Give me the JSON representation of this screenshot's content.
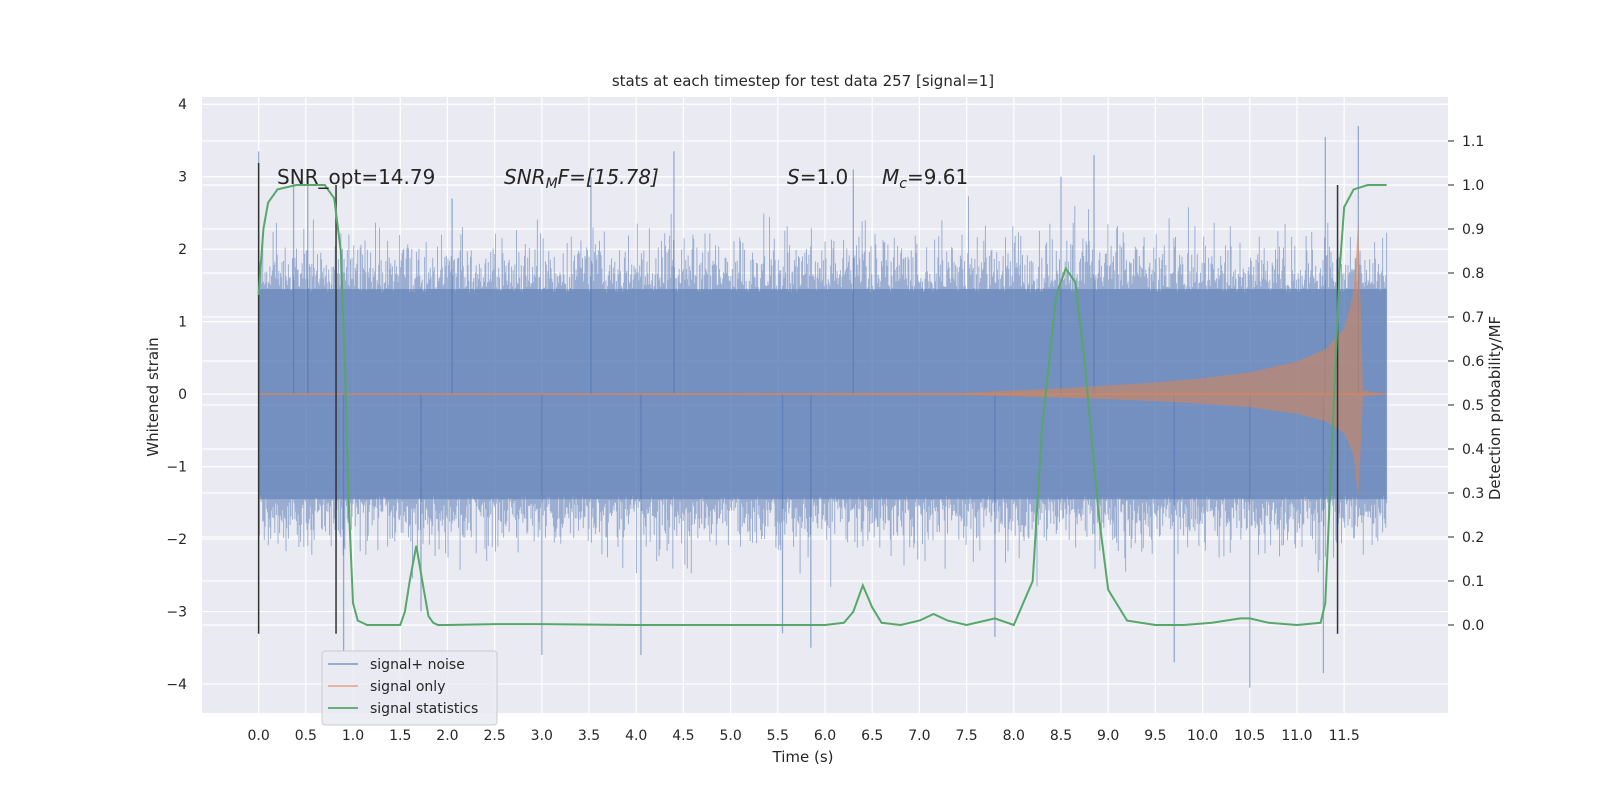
{
  "chart_data": {
    "type": "line",
    "title": "stats at each timestep for test data 257 [signal=1]",
    "xlabel": "Time (s)",
    "ylabel": "Whitened strain",
    "ylabel_right": "Detection probability/MF",
    "xlim": [
      -0.6,
      12.6
    ],
    "ylim_left": [
      -4.4,
      4.1
    ],
    "ylim_right": [
      -0.2,
      1.2
    ],
    "x_ticks": [
      "0.0",
      "0.5",
      "1.0",
      "1.5",
      "2.0",
      "2.5",
      "3.0",
      "3.5",
      "4.0",
      "4.5",
      "5.0",
      "5.5",
      "6.0",
      "6.5",
      "7.0",
      "7.5",
      "8.0",
      "8.5",
      "9.0",
      "9.5",
      "10.0",
      "10.5",
      "11.0",
      "11.5"
    ],
    "y_ticks_left": [
      "4",
      "3",
      "2",
      "1",
      "0",
      "−1",
      "−2",
      "−3",
      "−4"
    ],
    "y_ticks_right": [
      "1.1",
      "1.0",
      "0.9",
      "0.8",
      "0.7",
      "0.6",
      "0.5",
      "0.4",
      "0.3",
      "0.2",
      "0.1",
      "0.0"
    ],
    "grid": true,
    "legend_position": "lower-left",
    "annotations": {
      "snr_opt": "SNR_opt=14.79",
      "snr_mf_sym": "SNR",
      "snr_mf_sub": "M",
      "snr_mf_rest": "F=[15.78]",
      "s_sym": "S",
      "s_rest": "=1.0",
      "mc_sym": "M",
      "mc_sub": "c",
      "mc_rest": "=9.61"
    },
    "vertical_markers_x": [
      0.0,
      0.82,
      11.43
    ],
    "series": [
      {
        "name": "signal+ noise",
        "color": "#4c72b0",
        "axis": "left",
        "x_range": [
          0.0,
          11.95
        ],
        "envelope": {
          "x": [
            0.0,
            11.95
          ],
          "y_min": [
            -2.0,
            -2.0
          ],
          "y_max": [
            2.0,
            2.0
          ]
        },
        "spikes": [
          {
            "x": 0.0,
            "y": 3.35
          },
          {
            "x": 0.37,
            "y": 2.9
          },
          {
            "x": 0.52,
            "y": 3.0
          },
          {
            "x": 0.9,
            "y": -3.55
          },
          {
            "x": 1.72,
            "y": -3.0
          },
          {
            "x": 2.05,
            "y": 2.7
          },
          {
            "x": 3.0,
            "y": -3.6
          },
          {
            "x": 3.52,
            "y": 3.0
          },
          {
            "x": 4.05,
            "y": -3.6
          },
          {
            "x": 4.4,
            "y": 3.35
          },
          {
            "x": 5.55,
            "y": -3.3
          },
          {
            "x": 5.85,
            "y": -3.5
          },
          {
            "x": 6.3,
            "y": 3.1
          },
          {
            "x": 7.8,
            "y": -3.35
          },
          {
            "x": 8.5,
            "y": 3.0
          },
          {
            "x": 8.85,
            "y": 3.3
          },
          {
            "x": 9.7,
            "y": -3.7
          },
          {
            "x": 10.5,
            "y": -4.05
          },
          {
            "x": 11.3,
            "y": 3.55
          },
          {
            "x": 11.28,
            "y": -3.85
          },
          {
            "x": 11.65,
            "y": 3.7
          }
        ]
      },
      {
        "name": "signal only",
        "color": "#dd8452",
        "axis": "left",
        "x": [
          0.0,
          7.5,
          8.0,
          8.5,
          9.0,
          9.5,
          10.0,
          10.5,
          11.0,
          11.3,
          11.5,
          11.6,
          11.65,
          11.7,
          11.95
        ],
        "amplitude": [
          0.0,
          0.02,
          0.05,
          0.08,
          0.12,
          0.16,
          0.22,
          0.3,
          0.45,
          0.62,
          0.9,
          1.4,
          2.4,
          0.05,
          0.0
        ]
      },
      {
        "name": "signal statistics",
        "color": "#55a868",
        "axis": "right",
        "x": [
          0.0,
          0.05,
          0.1,
          0.2,
          0.4,
          0.7,
          0.8,
          0.87,
          0.92,
          0.95,
          1.0,
          1.05,
          1.15,
          1.3,
          1.5,
          1.55,
          1.6,
          1.67,
          1.75,
          1.8,
          1.85,
          1.9,
          2.0,
          2.5,
          3.0,
          4.0,
          5.0,
          6.0,
          6.2,
          6.3,
          6.4,
          6.5,
          6.6,
          6.8,
          7.0,
          7.15,
          7.3,
          7.5,
          7.7,
          7.8,
          8.0,
          8.2,
          8.3,
          8.45,
          8.55,
          8.65,
          8.75,
          8.9,
          9.0,
          9.2,
          9.5,
          9.8,
          10.1,
          10.4,
          10.5,
          10.7,
          11.0,
          11.25,
          11.3,
          11.35,
          11.45,
          11.5,
          11.6,
          11.75,
          11.95
        ],
        "y": [
          0.75,
          0.9,
          0.96,
          0.99,
          1.0,
          1.0,
          0.97,
          0.85,
          0.55,
          0.3,
          0.05,
          0.01,
          0.0,
          0.0,
          0.0,
          0.03,
          0.1,
          0.18,
          0.08,
          0.02,
          0.005,
          0.0,
          0.0,
          0.002,
          0.002,
          0.0,
          0.0,
          0.0,
          0.005,
          0.03,
          0.09,
          0.04,
          0.005,
          0.0,
          0.01,
          0.025,
          0.01,
          0.0,
          0.01,
          0.015,
          0.0,
          0.1,
          0.45,
          0.75,
          0.81,
          0.78,
          0.6,
          0.25,
          0.08,
          0.01,
          0.0,
          0.0,
          0.005,
          0.015,
          0.015,
          0.005,
          0.0,
          0.005,
          0.05,
          0.3,
          0.8,
          0.95,
          0.99,
          1.0,
          1.0
        ]
      }
    ]
  }
}
